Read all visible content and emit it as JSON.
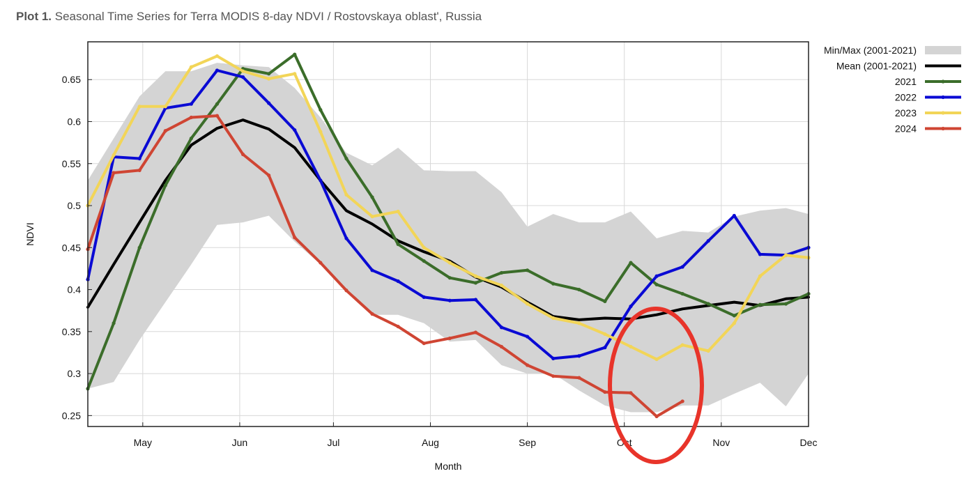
{
  "title": {
    "prefix": "Plot 1.",
    "text": "Seasonal Time Series for Terra MODIS 8-day NDVI / Rostovskaya oblast', Russia"
  },
  "chart_data": {
    "type": "line",
    "xlabel": "Month",
    "ylabel": "NDVI",
    "xlim": [
      113,
      336
    ],
    "ylim": [
      0.237,
      0.695
    ],
    "x_ticks": [
      {
        "label": "May",
        "value": 130
      },
      {
        "label": "Jun",
        "value": 160
      },
      {
        "label": "Jul",
        "value": 189
      },
      {
        "label": "Aug",
        "value": 219
      },
      {
        "label": "Sep",
        "value": 249
      },
      {
        "label": "Oct",
        "value": 279
      },
      {
        "label": "Nov",
        "value": 309
      },
      {
        "label": "Dec",
        "value": 336
      }
    ],
    "y_ticks": [
      0.25,
      0.3,
      0.35,
      0.4,
      0.45,
      0.5,
      0.55,
      0.6,
      0.65
    ],
    "grid": true,
    "legend_position": "right",
    "band": {
      "name": "Min/Max (2001-2021)",
      "color": "#d4d4d4",
      "x": [
        113,
        121,
        129,
        137,
        145,
        153,
        161,
        169,
        177,
        185,
        193,
        201,
        209,
        217,
        225,
        233,
        241,
        249,
        257,
        265,
        273,
        281,
        289,
        297,
        305,
        313,
        321,
        329,
        336
      ],
      "max": [
        0.53,
        0.58,
        0.63,
        0.66,
        0.66,
        0.67,
        0.667,
        0.665,
        0.64,
        0.605,
        0.563,
        0.548,
        0.569,
        0.542,
        0.541,
        0.541,
        0.516,
        0.475,
        0.49,
        0.48,
        0.48,
        0.493,
        0.461,
        0.47,
        0.468,
        0.487,
        0.494,
        0.497,
        0.49
      ],
      "min": [
        0.282,
        0.29,
        0.34,
        0.385,
        0.43,
        0.477,
        0.48,
        0.488,
        0.457,
        0.43,
        0.4,
        0.37,
        0.37,
        0.36,
        0.338,
        0.34,
        0.31,
        0.3,
        0.3,
        0.28,
        0.262,
        0.254,
        0.254,
        0.262,
        0.262,
        0.276,
        0.289,
        0.261,
        0.3
      ]
    },
    "series": [
      {
        "name": "Mean (2001-2021)",
        "color": "#000000",
        "markers": false,
        "x": [
          113,
          121,
          129,
          137,
          145,
          153,
          161,
          169,
          177,
          185,
          193,
          201,
          209,
          217,
          225,
          233,
          241,
          249,
          257,
          265,
          273,
          281,
          289,
          297,
          305,
          313,
          321,
          329,
          336
        ],
        "values": [
          0.379,
          0.43,
          0.48,
          0.53,
          0.572,
          0.592,
          0.602,
          0.591,
          0.569,
          0.53,
          0.494,
          0.478,
          0.458,
          0.445,
          0.434,
          0.415,
          0.403,
          0.385,
          0.368,
          0.364,
          0.366,
          0.365,
          0.37,
          0.377,
          0.381,
          0.385,
          0.381,
          0.389,
          0.391
        ]
      },
      {
        "name": "2021",
        "color": "#3b6d2a",
        "markers": true,
        "x": [
          113,
          121,
          129,
          137,
          145,
          153,
          161,
          169,
          177,
          185,
          193,
          201,
          209,
          217,
          225,
          233,
          241,
          249,
          257,
          265,
          273,
          281,
          289,
          297,
          305,
          313,
          321,
          329,
          336
        ],
        "values": [
          0.282,
          0.36,
          0.45,
          0.524,
          0.58,
          0.621,
          0.663,
          0.657,
          0.68,
          0.614,
          0.556,
          0.51,
          0.454,
          0.434,
          0.414,
          0.408,
          0.42,
          0.423,
          0.407,
          0.4,
          0.386,
          0.432,
          0.406,
          0.395,
          0.383,
          0.369,
          0.382,
          0.383,
          0.395
        ]
      },
      {
        "name": "2022",
        "color": "#0a0ad4",
        "markers": true,
        "x": [
          113,
          121,
          129,
          137,
          145,
          153,
          161,
          169,
          177,
          185,
          193,
          201,
          209,
          217,
          225,
          233,
          241,
          249,
          257,
          265,
          273,
          281,
          289,
          297,
          305,
          313,
          321,
          329,
          336
        ],
        "values": [
          0.412,
          0.558,
          0.556,
          0.616,
          0.621,
          0.661,
          0.653,
          0.622,
          0.59,
          0.53,
          0.461,
          0.423,
          0.41,
          0.391,
          0.387,
          0.388,
          0.355,
          0.344,
          0.318,
          0.321,
          0.331,
          0.38,
          0.416,
          0.427,
          0.458,
          0.488,
          0.442,
          0.441,
          0.45
        ]
      },
      {
        "name": "2023",
        "color": "#f2d558",
        "markers": true,
        "x": [
          113,
          121,
          129,
          137,
          145,
          153,
          161,
          169,
          177,
          185,
          193,
          201,
          209,
          217,
          225,
          233,
          241,
          249,
          257,
          265,
          273,
          281,
          289,
          297,
          305,
          313,
          321,
          329,
          336
        ],
        "values": [
          0.5,
          0.56,
          0.618,
          0.618,
          0.665,
          0.678,
          0.66,
          0.651,
          0.657,
          0.588,
          0.513,
          0.487,
          0.493,
          0.45,
          0.432,
          0.416,
          0.405,
          0.383,
          0.366,
          0.36,
          0.347,
          0.332,
          0.317,
          0.334,
          0.327,
          0.36,
          0.416,
          0.441,
          0.438
        ]
      },
      {
        "name": "2024",
        "color": "#cf4533",
        "markers": true,
        "x": [
          113,
          121,
          129,
          137,
          145,
          153,
          161,
          169,
          177,
          185,
          193,
          201,
          209,
          217,
          225,
          233,
          241,
          249,
          257,
          265,
          273,
          281,
          289,
          297
        ],
        "values": [
          0.448,
          0.539,
          0.542,
          0.589,
          0.605,
          0.607,
          0.561,
          0.536,
          0.462,
          0.432,
          0.399,
          0.371,
          0.356,
          0.336,
          0.342,
          0.349,
          0.332,
          0.31,
          0.297,
          0.295,
          0.278,
          0.277,
          0.249,
          0.267
        ]
      }
    ],
    "annotation": {
      "type": "ellipse",
      "color": "#e8342a",
      "description": "highlight"
    }
  }
}
